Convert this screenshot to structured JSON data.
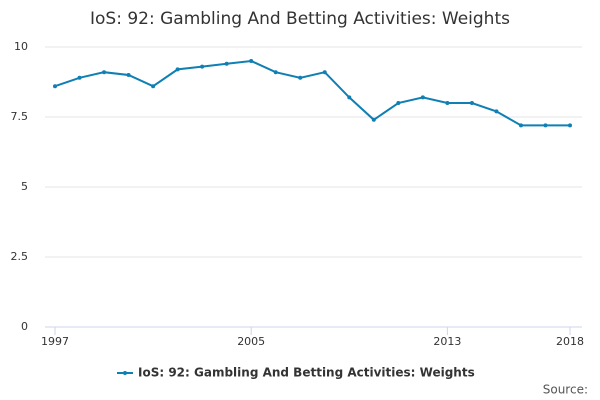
{
  "chart_data": {
    "type": "line",
    "title": "IoS: 92: Gambling And Betting Activities: Weights",
    "x": [
      1997,
      1998,
      1999,
      2000,
      2001,
      2002,
      2003,
      2004,
      2005,
      2006,
      2007,
      2008,
      2009,
      2010,
      2011,
      2012,
      2013,
      2014,
      2015,
      2016,
      2017,
      2018
    ],
    "series": [
      {
        "name": "IoS: 92: Gambling And Betting Activities: Weights",
        "color": "#0f7fb4",
        "values": [
          8.6,
          8.9,
          9.1,
          9.0,
          8.6,
          9.2,
          9.3,
          9.4,
          9.5,
          9.1,
          8.9,
          9.1,
          8.2,
          7.4,
          8.0,
          8.2,
          8.0,
          8.0,
          7.7,
          7.2,
          7.2,
          7.2
        ]
      }
    ],
    "xlim": [
      1997,
      2018
    ],
    "xticks": [
      1997,
      2005,
      2013,
      2018
    ],
    "ylim": [
      0,
      10
    ],
    "yticks": [
      0,
      2.5,
      5,
      7.5,
      10
    ],
    "grid": true,
    "legend": "bottom",
    "source": "Source:"
  }
}
